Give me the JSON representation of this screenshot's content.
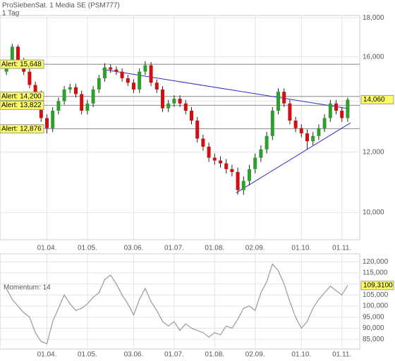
{
  "chart_data": [
    {
      "type": "candlestick",
      "title": "ProSiebenSat. 1 Media SE (PSM777)",
      "subtitle": "1 Tag",
      "log_scale": true,
      "grid": true,
      "up_color": "#2e9e2e",
      "down_color": "#d01010",
      "categories": [
        null,
        null,
        null,
        null,
        null,
        null,
        null,
        "01.04.",
        null,
        null,
        null,
        null,
        null,
        null,
        "01.05.",
        null,
        null,
        null,
        null,
        null,
        null,
        null,
        "03.06.",
        null,
        null,
        null,
        null,
        null,
        null,
        "01.07.",
        null,
        null,
        null,
        null,
        null,
        null,
        "01.08.",
        null,
        null,
        null,
        null,
        null,
        null,
        "02.09.",
        null,
        null,
        null,
        null,
        null,
        null,
        null,
        "01.10.",
        null,
        null,
        null,
        null,
        null,
        null,
        "01.11.",
        null
      ],
      "open": [
        15.3,
        15.6,
        16.5,
        15.8,
        15.3,
        14.7,
        14.3,
        13.3,
        12.9,
        13.6,
        14.0,
        14.5,
        14.6,
        14.3,
        13.6,
        13.9,
        14.5,
        15.0,
        15.5,
        15.4,
        15.3,
        15.0,
        14.8,
        14.5,
        15.3,
        15.6,
        14.8,
        14.5,
        13.7,
        13.9,
        14.1,
        13.9,
        13.6,
        13.2,
        12.5,
        12.2,
        11.8,
        11.7,
        11.6,
        11.4,
        11.3,
        10.7,
        11.0,
        11.4,
        11.8,
        12.1,
        12.6,
        13.6,
        14.4,
        13.9,
        13.2,
        12.9,
        12.7,
        12.4,
        12.6,
        12.9,
        13.3,
        13.9,
        13.6,
        13.3
      ],
      "high": [
        15.75,
        16.65,
        16.6,
        15.95,
        15.45,
        14.85,
        14.45,
        13.45,
        13.75,
        14.15,
        14.65,
        14.75,
        14.75,
        14.45,
        14.05,
        14.65,
        15.15,
        15.7,
        15.65,
        15.55,
        15.45,
        15.15,
        14.95,
        15.45,
        15.8,
        15.75,
        14.95,
        14.65,
        14.05,
        14.25,
        14.25,
        14.05,
        13.75,
        13.35,
        12.65,
        12.35,
        11.95,
        11.85,
        11.75,
        11.55,
        11.45,
        11.15,
        11.55,
        11.95,
        12.25,
        12.75,
        13.75,
        14.55,
        14.55,
        14.05,
        13.35,
        13.05,
        12.85,
        12.75,
        13.05,
        13.45,
        14.05,
        14.05,
        13.75,
        14.15
      ],
      "low": [
        15.15,
        15.45,
        15.65,
        15.15,
        14.55,
        14.15,
        13.15,
        12.7,
        12.75,
        13.45,
        13.85,
        14.35,
        14.15,
        13.45,
        13.45,
        13.75,
        14.35,
        14.85,
        15.25,
        15.15,
        14.85,
        14.65,
        14.35,
        14.35,
        15.15,
        14.65,
        14.35,
        13.55,
        13.55,
        13.75,
        13.75,
        13.45,
        13.05,
        12.35,
        12.05,
        11.65,
        11.55,
        11.45,
        11.25,
        11.15,
        10.55,
        10.55,
        10.85,
        11.25,
        11.65,
        11.95,
        12.45,
        13.45,
        13.75,
        13.05,
        12.75,
        12.55,
        12.1,
        12.25,
        12.45,
        12.75,
        13.15,
        13.45,
        13.15,
        13.15
      ],
      "close": [
        15.6,
        16.5,
        15.8,
        15.3,
        14.7,
        14.3,
        13.3,
        12.9,
        13.6,
        14.0,
        14.5,
        14.6,
        14.3,
        13.6,
        13.9,
        14.5,
        15.0,
        15.5,
        15.4,
        15.3,
        15.0,
        14.8,
        14.5,
        15.3,
        15.6,
        14.8,
        14.5,
        13.7,
        13.9,
        14.1,
        13.9,
        13.6,
        13.2,
        12.5,
        12.2,
        11.8,
        11.7,
        11.6,
        11.4,
        11.3,
        10.7,
        11.0,
        11.4,
        11.8,
        12.1,
        12.6,
        13.6,
        14.4,
        13.9,
        13.2,
        12.9,
        12.7,
        12.4,
        12.6,
        12.9,
        13.3,
        13.9,
        13.6,
        13.3,
        14.06
      ],
      "ylim": [
        9.21,
        18.13
      ],
      "yticks": [
        {
          "value": 10,
          "label": "10,000"
        },
        {
          "value": 12,
          "label": "12,000"
        },
        {
          "value": 14,
          "label": "14,000"
        },
        {
          "value": 16,
          "label": "16,000"
        },
        {
          "value": 18,
          "label": "18,000"
        }
      ],
      "alerts": [
        {
          "value": 15.648,
          "label": "Alert: 15,648"
        },
        {
          "value": 14.2,
          "label": "Alert: 14,200"
        },
        {
          "value": 13.822,
          "label": "Alert: 13,822"
        },
        {
          "value": 12.876,
          "label": "Alert: 12,876"
        }
      ],
      "last": {
        "value": 14.06,
        "label": "14,060"
      },
      "trendlines": [
        {
          "x": [
            16.6,
            59.3
          ],
          "y": [
            15.41,
            13.68
          ],
          "color": "#2a2ad0"
        },
        {
          "x": [
            39.7,
            59.5
          ],
          "y": [
            10.61,
            13.11
          ],
          "color": "#2a2ad0"
        }
      ]
    },
    {
      "type": "line",
      "label": "Momentum: 14",
      "color": "#999999",
      "categories": [
        null,
        null,
        null,
        null,
        null,
        null,
        null,
        "01.04.",
        null,
        null,
        null,
        null,
        null,
        null,
        "01.05.",
        null,
        null,
        null,
        null,
        null,
        null,
        null,
        "03.06.",
        null,
        null,
        null,
        null,
        null,
        null,
        "01.07.",
        null,
        null,
        null,
        null,
        null,
        null,
        "01.08.",
        null,
        null,
        null,
        null,
        null,
        null,
        "02.09.",
        null,
        null,
        null,
        null,
        null,
        null,
        null,
        "01.10.",
        null,
        null,
        null,
        null,
        null,
        null,
        "01.11.",
        null
      ],
      "values": [
        108,
        103,
        100,
        97,
        95,
        88,
        84,
        83,
        93,
        99,
        105,
        101,
        98,
        99,
        101,
        104,
        106,
        112,
        114,
        110,
        105,
        101,
        96,
        103,
        108,
        102,
        98,
        93,
        91,
        93,
        89,
        92,
        90,
        89,
        88,
        86,
        88,
        87,
        91,
        90,
        94,
        99,
        100,
        98,
        106,
        111,
        119,
        116,
        110,
        102,
        95,
        90,
        93,
        99,
        103,
        106,
        109,
        107,
        105,
        109.31
      ],
      "ylim": [
        80.6,
        123.6
      ],
      "yticks": [
        {
          "value": 85,
          "label": "85,000"
        },
        {
          "value": 90,
          "label": "90,000"
        },
        {
          "value": 95,
          "label": "95,000"
        },
        {
          "value": 100,
          "label": "100,000"
        },
        {
          "value": 105,
          "label": "105,000"
        },
        {
          "value": 110,
          "label": "110,000"
        },
        {
          "value": 115,
          "label": "115,000"
        },
        {
          "value": 120,
          "label": "120,000"
        }
      ],
      "last": {
        "value": 109.31,
        "label": "109,3100"
      }
    }
  ]
}
